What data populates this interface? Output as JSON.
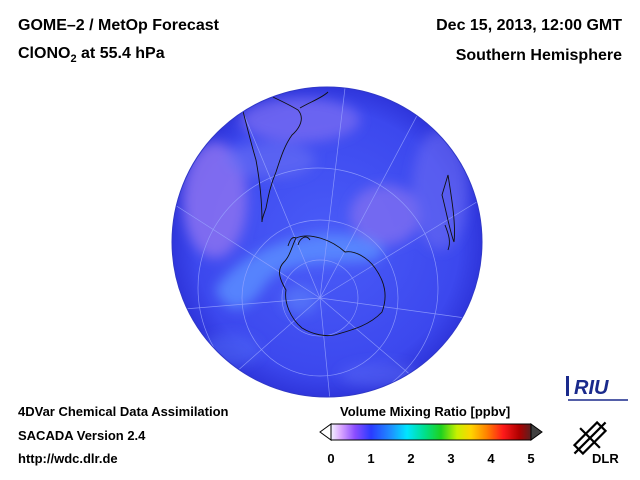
{
  "header": {
    "instrument": "GOME–2 / MetOp Forecast",
    "species_prefix": "ClONO",
    "species_subscript": "2",
    "species_suffix": " at 55.4 hPa",
    "datetime": "Dec 15, 2013, 12:00 GMT",
    "region": "Southern Hemisphere"
  },
  "footer": {
    "line1": "4DVar Chemical Data Assimilation",
    "line2": "SACADA Version 2.4",
    "line3": "http://wdc.dlr.de"
  },
  "colorbar": {
    "title": "Volume Mixing Ratio [ppbv]",
    "ticks": [
      "0",
      "1",
      "2",
      "3",
      "4",
      "5"
    ],
    "min": 0,
    "max": 5,
    "low_color": "#ffffff",
    "high_color": "#404040"
  },
  "logos": {
    "riu": "RIU",
    "dlr": "DLR"
  },
  "colors": {
    "globe_base": "#3d4bf0",
    "globe_dark": "#2a30d0",
    "high_band": "#8c74f0",
    "mid_band": "#5f6ef5"
  }
}
